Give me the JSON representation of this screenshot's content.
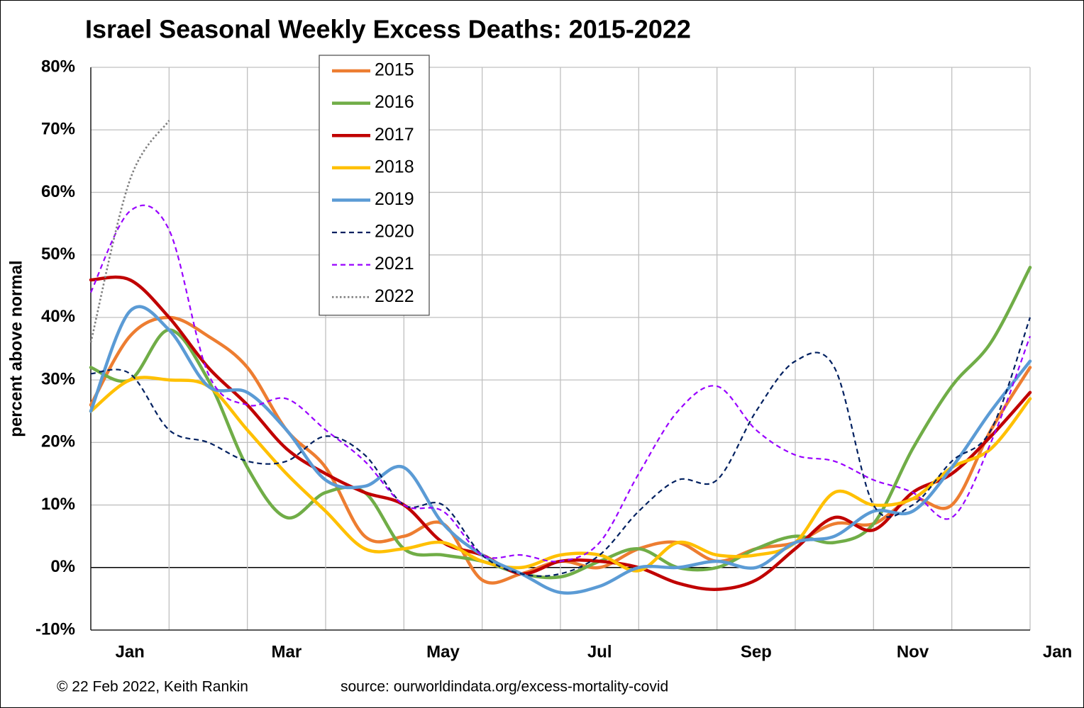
{
  "chart_data": {
    "type": "line",
    "title": "Israel Seasonal Weekly Excess Deaths: 2015-2022",
    "y_label": "percent above normal",
    "footer_left": "© 22 Feb 2022, Keith Rankin",
    "footer_right": "source: ourworldindata.org/excess-mortality-covid",
    "x": [
      0,
      0.5,
      1,
      1.5,
      2,
      2.5,
      3,
      3.5,
      4,
      4.5,
      5,
      5.5,
      6,
      6.5,
      7,
      7.5,
      8,
      8.5,
      9,
      9.5,
      10,
      10.5,
      11,
      11.5,
      12
    ],
    "xlim": [
      0,
      12
    ],
    "xgrid": [
      0,
      1,
      2,
      3,
      4,
      5,
      6,
      7,
      8,
      9,
      10,
      11,
      12
    ],
    "xticks": [
      {
        "value": 0.5,
        "label": "Jan"
      },
      {
        "value": 2.5,
        "label": "Mar"
      },
      {
        "value": 4.5,
        "label": "May"
      },
      {
        "value": 6.5,
        "label": "Jul"
      },
      {
        "value": 8.5,
        "label": "Sep"
      },
      {
        "value": 10.5,
        "label": "Nov"
      },
      {
        "value": 12.35,
        "label": "Jan"
      }
    ],
    "ylim": [
      -10,
      80
    ],
    "yticks": [
      {
        "value": -10,
        "label": "-10%"
      },
      {
        "value": 0,
        "label": "0%"
      },
      {
        "value": 10,
        "label": "10%"
      },
      {
        "value": 20,
        "label": "20%"
      },
      {
        "value": 30,
        "label": "30%"
      },
      {
        "value": 40,
        "label": "40%"
      },
      {
        "value": 50,
        "label": "50%"
      },
      {
        "value": 60,
        "label": "60%"
      },
      {
        "value": 70,
        "label": "70%"
      },
      {
        "value": 80,
        "label": "80%"
      }
    ],
    "grid": true,
    "legend": "top-left",
    "series": [
      {
        "name": "2015",
        "color": "#ed7d31",
        "style": "solid",
        "values": [
          26,
          37,
          40,
          37,
          32,
          22,
          16,
          5,
          5,
          7,
          -2,
          -1,
          1,
          0,
          3,
          4,
          1,
          3,
          4,
          7,
          7,
          11,
          10,
          22,
          32
        ]
      },
      {
        "name": "2016",
        "color": "#70ad47",
        "style": "solid",
        "values": [
          32,
          30,
          38,
          30,
          16,
          8,
          12,
          12,
          3,
          2,
          1,
          -1,
          -1.5,
          1,
          3,
          0,
          0,
          3,
          5,
          4,
          7,
          19,
          29,
          36,
          48
        ]
      },
      {
        "name": "2017",
        "color": "#c00000",
        "style": "solid",
        "values": [
          46,
          46,
          40,
          32,
          26,
          19,
          15,
          12,
          10,
          4,
          2,
          -1,
          1,
          1,
          0,
          -2.5,
          -3.5,
          -2,
          3,
          8,
          6,
          12,
          15,
          21,
          28
        ]
      },
      {
        "name": "2018",
        "color": "#ffc000",
        "style": "solid",
        "values": [
          25,
          30,
          30,
          29,
          22,
          15,
          9,
          3,
          3,
          4,
          1,
          0,
          2,
          2,
          -0.5,
          4,
          2,
          2,
          4,
          12,
          10,
          11,
          16,
          19,
          27
        ]
      },
      {
        "name": "2019",
        "color": "#5b9bd5",
        "style": "solid",
        "values": [
          25,
          41,
          38,
          29,
          28,
          22,
          14,
          13,
          16,
          7,
          2,
          -1,
          -4,
          -3,
          0,
          0,
          1,
          0,
          4,
          5,
          9,
          9,
          16,
          25,
          33
        ]
      },
      {
        "name": "2020",
        "color": "#002060",
        "style": "dashed",
        "values": [
          31,
          31,
          22,
          20,
          17,
          17,
          21,
          18,
          10,
          10,
          2,
          -1,
          -1,
          2,
          9,
          14,
          14,
          25,
          33,
          32,
          10,
          10,
          17,
          22,
          40
        ]
      },
      {
        "name": "2021",
        "color": "#9900ff",
        "style": "dashed",
        "values": [
          44,
          57,
          54,
          31,
          26,
          27,
          22,
          17,
          10,
          9,
          2,
          2,
          1,
          4,
          15,
          25,
          29,
          22,
          18,
          17,
          14,
          12,
          8,
          20,
          37
        ]
      },
      {
        "name": "2022",
        "color": "#7f7f7f",
        "style": "dotted",
        "values": [
          36,
          62,
          71.5,
          null,
          null,
          null,
          null,
          null,
          null,
          null,
          null,
          null,
          null,
          null,
          null,
          null,
          null,
          null,
          null,
          null,
          null,
          null,
          null,
          null,
          null
        ]
      }
    ]
  }
}
